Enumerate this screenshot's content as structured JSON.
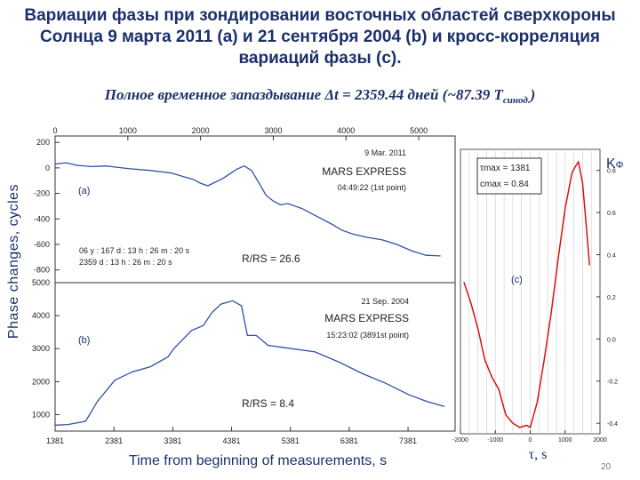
{
  "slide": {
    "title": "Вариации фазы при зондировании восточных областей сверхкороны Солнца 9 марта 2011 (a) и 21 сентября 2004 (b) и кросс-корреляция вариаций фазы (c).",
    "subtitle_main": "Полное временное запаздывание  Δt = 2359.44 дней  (~87.39 T",
    "subtitle_sub": "синод.",
    "subtitle_end": ")",
    "ylabel": "Phase changes, cycles",
    "xlabel": "Time from beginning of measurements, s",
    "xlabel_c": "τ, s",
    "kphi_main": "K",
    "kphi_sub": "Φ",
    "page_number": "20"
  },
  "chart_data": [
    {
      "type": "line",
      "panel": "(a)",
      "header": "9 Mar. 2011",
      "mission": "MARS EXPRESS",
      "time": "04:49:22 (1st point)",
      "note_line1": "06 y : 167 d : 13 h : 26 m : 20 s",
      "note_line2": "2359 d : 13 h : 26 m : 20 s",
      "ratio": "R/RS = 26.6",
      "top_ticks": [
        "0",
        "1000",
        "2000",
        "3000",
        "4000",
        "5000"
      ],
      "yticks": [
        "200",
        "0",
        "-200",
        "-400",
        "-600",
        "-800"
      ],
      "xlim": [
        0,
        5500
      ],
      "ylim": [
        -900,
        250
      ],
      "color": "#3050a8",
      "x": [
        0,
        150,
        300,
        500,
        700,
        1000,
        1300,
        1600,
        1800,
        1900,
        2000,
        2100,
        2300,
        2500,
        2600,
        2700,
        2800,
        2900,
        3000,
        3100,
        3200,
        3400,
        3600,
        3800,
        3950,
        4100,
        4300,
        4500,
        4700,
        4900,
        5100,
        5300
      ],
      "y": [
        30,
        40,
        20,
        10,
        15,
        -5,
        -20,
        -40,
        -75,
        -90,
        -120,
        -140,
        -85,
        -10,
        15,
        -20,
        -115,
        -215,
        -260,
        -290,
        -280,
        -320,
        -380,
        -440,
        -490,
        -520,
        -545,
        -565,
        -600,
        -650,
        -685,
        -690
      ]
    },
    {
      "type": "line",
      "panel": "(b)",
      "header": "21 Sep. 2004",
      "mission": "MARS EXPRESS",
      "time": "15:23:02 (3891st point)",
      "ratio": "R/RS = 8.4",
      "xticks": [
        "1381",
        "2381",
        "3381",
        "4381",
        "5381",
        "6381",
        "7381"
      ],
      "yticks": [
        "5000",
        "4000",
        "3000",
        "2000",
        "1000"
      ],
      "xlabel": "Time from beginning of measurements, s",
      "xlim": [
        1381,
        8181
      ],
      "ylim": [
        500,
        5000
      ],
      "color": "#3050a8",
      "x": [
        1381,
        1600,
        1900,
        2100,
        2400,
        2700,
        3000,
        3300,
        3400,
        3700,
        3900,
        4050,
        4200,
        4400,
        4550,
        4650,
        4800,
        5000,
        5400,
        5800,
        6200,
        6600,
        7000,
        7400,
        7700,
        8000
      ],
      "y": [
        680,
        700,
        800,
        1400,
        2050,
        2300,
        2450,
        2750,
        3000,
        3550,
        3700,
        4100,
        4350,
        4450,
        4300,
        3400,
        3400,
        3100,
        3000,
        2900,
        2600,
        2250,
        1950,
        1600,
        1400,
        1250
      ]
    },
    {
      "type": "line",
      "panel": "(c)",
      "annotation_line1": "τmax = 1381",
      "annotation_line2": "cmax = 0.84",
      "xticks": [
        "-2000",
        "-1000",
        "0",
        "1000",
        "2000"
      ],
      "yticks": [
        "0.8",
        "0.6",
        "0.4",
        "0.2",
        "0.0",
        "-0.2",
        "-0.4"
      ],
      "ylabel": "KΦ",
      "xlabel": "τ, s",
      "xlim": [
        -2000,
        2000
      ],
      "ylim": [
        -0.45,
        0.9
      ],
      "color": "#dd1010",
      "x": [
        -1900,
        -1700,
        -1500,
        -1300,
        -1100,
        -900,
        -700,
        -500,
        -300,
        -100,
        0,
        200,
        400,
        600,
        800,
        1000,
        1200,
        1300,
        1381,
        1500,
        1600,
        1700
      ],
      "y": [
        0.27,
        0.17,
        0.05,
        -0.1,
        -0.18,
        -0.24,
        -0.36,
        -0.4,
        -0.42,
        -0.41,
        -0.42,
        -0.3,
        -0.1,
        0.12,
        0.38,
        0.62,
        0.79,
        0.82,
        0.84,
        0.74,
        0.55,
        0.35
      ]
    }
  ]
}
